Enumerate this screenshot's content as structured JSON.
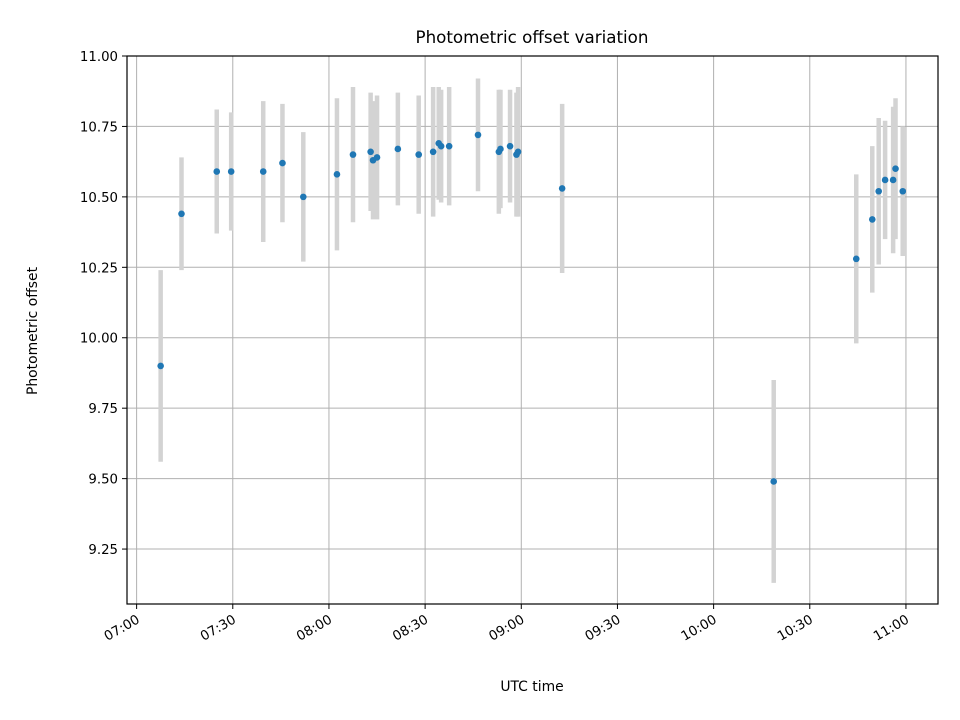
{
  "chart_data": {
    "type": "scatter",
    "title": "Photometric offset variation",
    "xlabel": "UTC time",
    "ylabel": "Photometric offset",
    "x_ticks": [
      "07:00",
      "07:30",
      "08:00",
      "08:30",
      "09:00",
      "09:30",
      "10:00",
      "10:30",
      "11:00"
    ],
    "y_ticks": [
      "9.25",
      "9.50",
      "9.75",
      "10.00",
      "10.25",
      "10.50",
      "10.75",
      "11.00"
    ],
    "xlim": [
      "06:57",
      "11:10"
    ],
    "ylim": [
      9.055,
      11.0
    ],
    "grid": true,
    "colors": {
      "marker": "#1f77b4",
      "errorbar": "#d3d3d3",
      "grid": "#b0b0b0"
    },
    "points": [
      {
        "time": "07:07:30",
        "y": 9.9,
        "yerr": 0.34
      },
      {
        "time": "07:14:00",
        "y": 10.44,
        "yerr": 0.2
      },
      {
        "time": "07:25:00",
        "y": 10.59,
        "yerr": 0.22
      },
      {
        "time": "07:29:30",
        "y": 10.59,
        "yerr": 0.21
      },
      {
        "time": "07:39:30",
        "y": 10.59,
        "yerr": 0.25
      },
      {
        "time": "07:45:30",
        "y": 10.62,
        "yerr": 0.21
      },
      {
        "time": "07:52:00",
        "y": 10.5,
        "yerr": 0.23
      },
      {
        "time": "08:02:30",
        "y": 10.58,
        "yerr": 0.27
      },
      {
        "time": "08:07:30",
        "y": 10.65,
        "yerr": 0.24
      },
      {
        "time": "08:13:00",
        "y": 10.66,
        "yerr": 0.21
      },
      {
        "time": "08:13:45",
        "y": 10.63,
        "yerr": 0.21
      },
      {
        "time": "08:15:00",
        "y": 10.64,
        "yerr": 0.22
      },
      {
        "time": "08:21:30",
        "y": 10.67,
        "yerr": 0.2
      },
      {
        "time": "08:28:00",
        "y": 10.65,
        "yerr": 0.21
      },
      {
        "time": "08:32:30",
        "y": 10.66,
        "yerr": 0.23
      },
      {
        "time": "08:34:15",
        "y": 10.69,
        "yerr": 0.2
      },
      {
        "time": "08:35:00",
        "y": 10.68,
        "yerr": 0.2
      },
      {
        "time": "08:37:30",
        "y": 10.68,
        "yerr": 0.21
      },
      {
        "time": "08:46:30",
        "y": 10.72,
        "yerr": 0.2
      },
      {
        "time": "08:53:00",
        "y": 10.66,
        "yerr": 0.22
      },
      {
        "time": "08:53:30",
        "y": 10.67,
        "yerr": 0.21
      },
      {
        "time": "08:56:30",
        "y": 10.68,
        "yerr": 0.2
      },
      {
        "time": "08:58:30",
        "y": 10.65,
        "yerr": 0.22
      },
      {
        "time": "08:59:00",
        "y": 10.66,
        "yerr": 0.23
      },
      {
        "time": "09:12:45",
        "y": 10.53,
        "yerr": 0.3
      },
      {
        "time": "10:18:45",
        "y": 9.49,
        "yerr": 0.36
      },
      {
        "time": "10:44:30",
        "y": 10.28,
        "yerr": 0.3
      },
      {
        "time": "10:49:30",
        "y": 10.42,
        "yerr": 0.26
      },
      {
        "time": "10:51:30",
        "y": 10.52,
        "yerr": 0.26
      },
      {
        "time": "10:53:30",
        "y": 10.56,
        "yerr": 0.21
      },
      {
        "time": "10:56:00",
        "y": 10.56,
        "yerr": 0.26
      },
      {
        "time": "10:56:45",
        "y": 10.6,
        "yerr": 0.25
      },
      {
        "time": "10:59:00",
        "y": 10.52,
        "yerr": 0.23
      }
    ]
  }
}
